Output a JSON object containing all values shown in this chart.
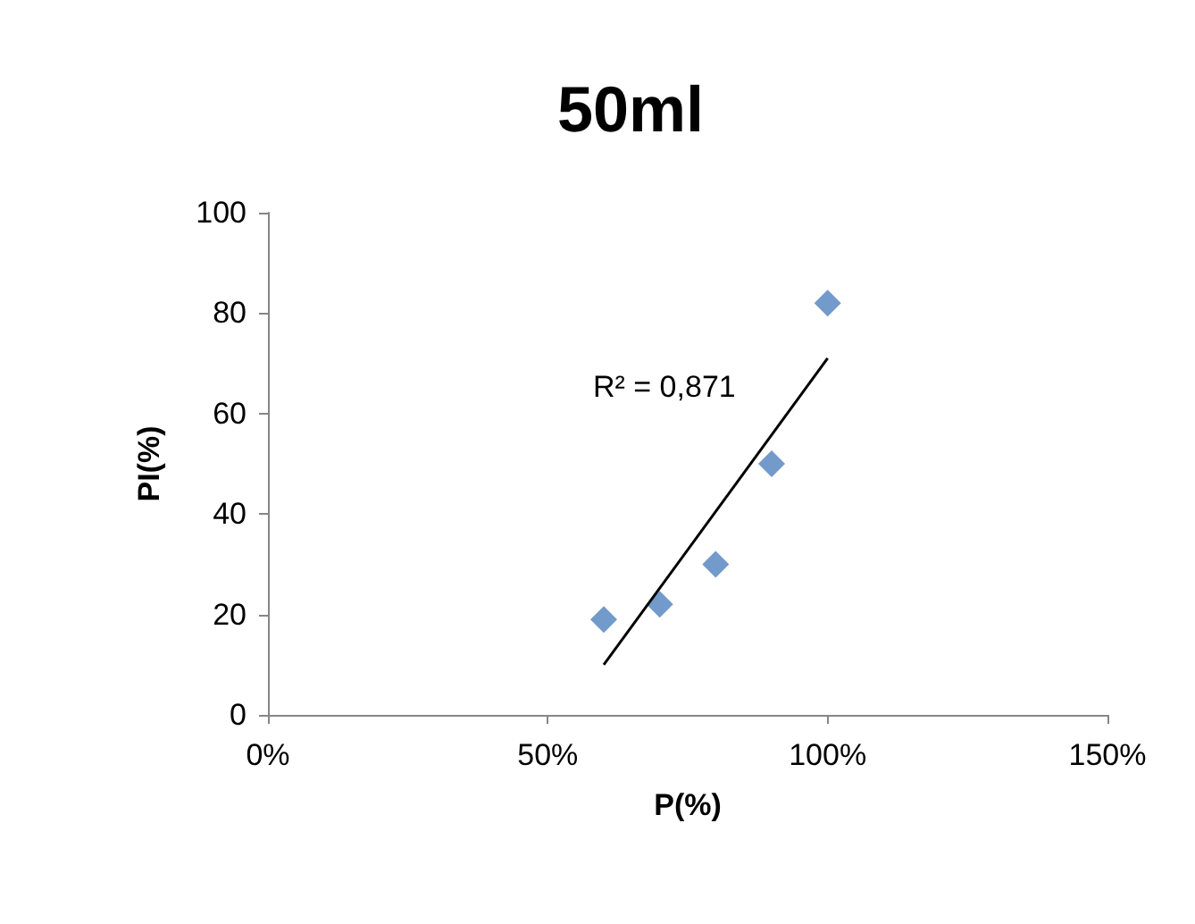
{
  "chart_data": {
    "type": "scatter",
    "title": "50ml",
    "xlabel": "P(%)",
    "ylabel": "PI(%)",
    "x": [
      60,
      70,
      80,
      90,
      100
    ],
    "series": [
      {
        "color": "#4f81bd",
        "marker": "diamond",
        "values": [
          19,
          22,
          30,
          50,
          82
        ]
      },
      {
        "type": "line",
        "color": "#000000",
        "marker": "none",
        "x": [
          60,
          100
        ],
        "values": [
          10,
          71
        ]
      }
    ],
    "xlim": [
      0,
      150
    ],
    "xticks": [
      {
        "value": 0,
        "label": "0%"
      },
      {
        "value": 50,
        "label": "50%"
      },
      {
        "value": 100,
        "label": "100%"
      },
      {
        "value": 150,
        "label": "150%"
      }
    ],
    "ylim": [
      0,
      100
    ],
    "yticks": [
      0,
      20,
      40,
      60,
      80,
      100
    ],
    "grid": false,
    "annotations": [
      "R² = 0,871"
    ]
  }
}
